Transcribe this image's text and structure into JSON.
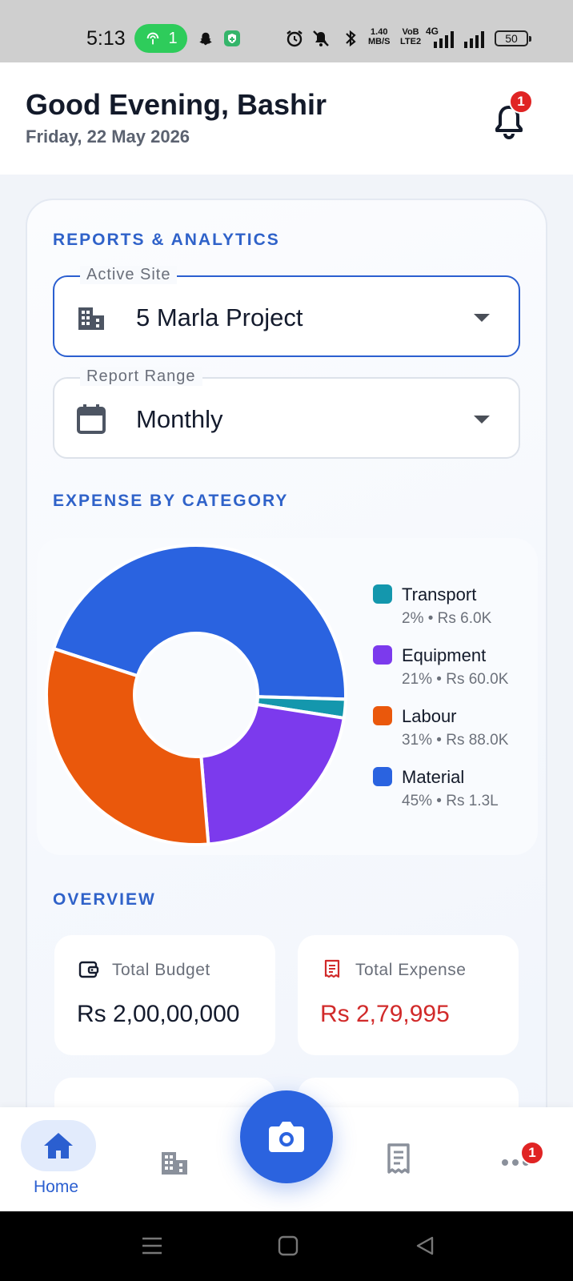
{
  "status_bar": {
    "time": "5:13",
    "hotspot_count": "1",
    "speed_value": "1.40",
    "speed_unit": "MB/S",
    "volte_top": "VoB",
    "volte_bottom": "LTE2",
    "network": "4G",
    "battery": "50"
  },
  "header": {
    "greeting": "Good Evening, Bashir",
    "date": "Friday, 22 May 2026",
    "notification_count": "1"
  },
  "reports": {
    "section_title": "REPORTS & ANALYTICS",
    "active_site_label": "Active Site",
    "active_site_value": "5 Marla Project",
    "report_range_label": "Report Range",
    "report_range_value": "Monthly"
  },
  "expense": {
    "section_title": "EXPENSE BY CATEGORY"
  },
  "chart_data": {
    "type": "pie",
    "donut": true,
    "categories": [
      "Material",
      "Transport",
      "Equipment",
      "Labour"
    ],
    "values": [
      45,
      2,
      21,
      31
    ],
    "amounts": [
      "Rs 1.3L",
      "Rs 6.0K",
      "Rs 60.0K",
      "Rs 88.0K"
    ],
    "colors": [
      "#2a63e0",
      "#1497ad",
      "#7c3aed",
      "#ea580c"
    ],
    "legend": [
      {
        "name": "Transport",
        "detail": "2% • Rs 6.0K",
        "color": "#1497ad"
      },
      {
        "name": "Equipment",
        "detail": "21% • Rs 60.0K",
        "color": "#7c3aed"
      },
      {
        "name": "Labour",
        "detail": "31% • Rs 88.0K",
        "color": "#ea580c"
      },
      {
        "name": "Material",
        "detail": "45% • Rs 1.3L",
        "color": "#2a63e0"
      }
    ],
    "legend_position": "right"
  },
  "overview": {
    "section_title": "OVERVIEW",
    "total_budget_label": "Total Budget",
    "total_budget_value": "Rs 2,00,00,000",
    "total_expense_label": "Total Expense",
    "total_expense_value": "Rs 2,79,995"
  },
  "bottom_nav": {
    "home_label": "Home",
    "more_badge": "1"
  }
}
